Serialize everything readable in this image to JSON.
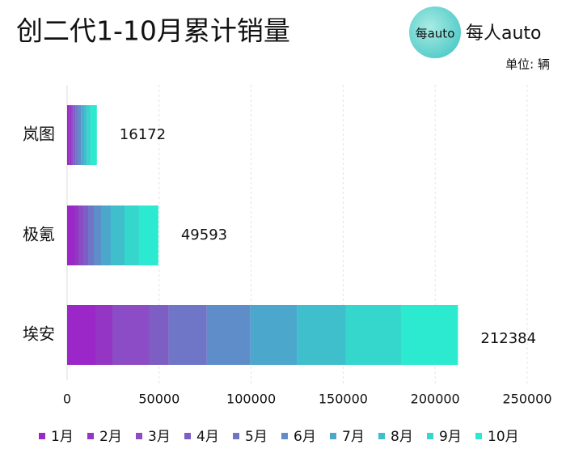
{
  "logo": {
    "badge": "每auto",
    "name": "每人auto"
  },
  "chart_data": {
    "type": "stacked-barh",
    "title": "创二代1-10月累计销量",
    "unit_note": "单位: 辆",
    "categories": [
      "岚图",
      "极氪",
      "埃安"
    ],
    "series": [
      {
        "name": "1月",
        "color": "#9b27c8",
        "values": [
          1200,
          3950,
          15800
        ]
      },
      {
        "name": "2月",
        "color": "#9435c4",
        "values": [
          1000,
          2200,
          8800
        ]
      },
      {
        "name": "3月",
        "color": "#8c4cc6",
        "values": [
          1200,
          2640,
          20200
        ]
      },
      {
        "name": "4月",
        "color": "#7d5fc4",
        "values": [
          1300,
          2640,
          10500
        ]
      },
      {
        "name": "5月",
        "color": "#6f76c8",
        "values": [
          1400,
          3070,
          20650
        ]
      },
      {
        "name": "6月",
        "color": "#5e8dc9",
        "values": [
          1500,
          3950,
          23700
        ]
      },
      {
        "name": "7月",
        "color": "#4ba7cb",
        "values": [
          1600,
          5270,
          25500
        ]
      },
      {
        "name": "8月",
        "color": "#3fbfcb",
        "values": [
          1700,
          7470,
          26400
        ]
      },
      {
        "name": "9月",
        "color": "#35d6cc",
        "values": [
          2000,
          7900,
          29900
        ]
      },
      {
        "name": "10月",
        "color": "#2bead0",
        "values": [
          3272,
          10503,
          30934
        ]
      }
    ],
    "totals": [
      16172,
      49593,
      212384
    ],
    "xlim": [
      0,
      250000
    ],
    "xticks": [
      0,
      50000,
      100000,
      150000,
      200000,
      250000
    ],
    "grid": true
  }
}
